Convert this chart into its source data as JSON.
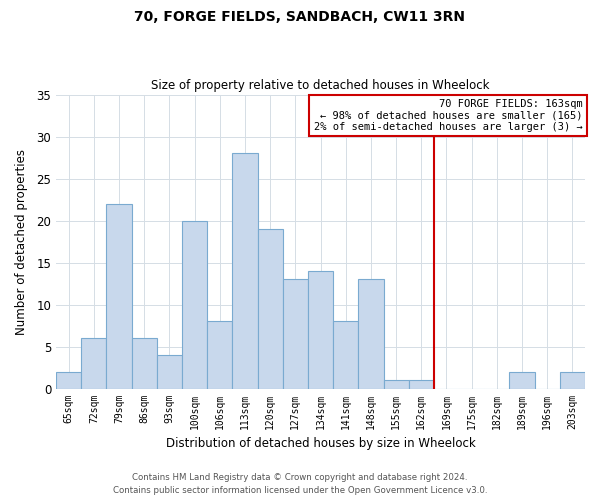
{
  "title": "70, FORGE FIELDS, SANDBACH, CW11 3RN",
  "subtitle": "Size of property relative to detached houses in Wheelock",
  "xlabel": "Distribution of detached houses by size in Wheelock",
  "ylabel": "Number of detached properties",
  "bar_color": "#c8d8ec",
  "bar_edge_color": "#7aaad0",
  "grid_color": "#d5dde5",
  "bg_color": "#ffffff",
  "categories": [
    "65sqm",
    "72sqm",
    "79sqm",
    "86sqm",
    "93sqm",
    "100sqm",
    "106sqm",
    "113sqm",
    "120sqm",
    "127sqm",
    "134sqm",
    "141sqm",
    "148sqm",
    "155sqm",
    "162sqm",
    "169sqm",
    "175sqm",
    "182sqm",
    "189sqm",
    "196sqm",
    "203sqm"
  ],
  "values": [
    2,
    6,
    22,
    6,
    4,
    20,
    8,
    28,
    19,
    13,
    14,
    8,
    13,
    1,
    1,
    0,
    0,
    0,
    2,
    0,
    2
  ],
  "ylim": [
    0,
    35
  ],
  "yticks": [
    0,
    5,
    10,
    15,
    20,
    25,
    30,
    35
  ],
  "marker_label": "162sqm",
  "annotation_title": "70 FORGE FIELDS: 163sqm",
  "annotation_line1": "← 98% of detached houses are smaller (165)",
  "annotation_line2": "2% of semi-detached houses are larger (3) →",
  "annotation_box_color": "#ffffff",
  "annotation_box_edge": "#cc0000",
  "marker_line_color": "#cc0000",
  "footer1": "Contains HM Land Registry data © Crown copyright and database right 2024.",
  "footer2": "Contains public sector information licensed under the Open Government Licence v3.0."
}
